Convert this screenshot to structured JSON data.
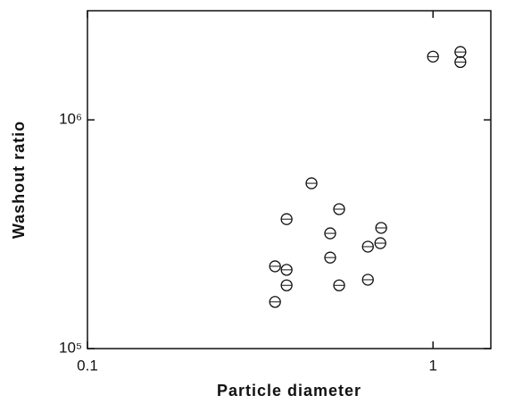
{
  "chart_data": {
    "type": "scatter",
    "x_label": "Particle diameter",
    "y_label": "Washout ratio",
    "xscale": "log",
    "yscale": "log",
    "xlim": [
      0.1,
      1.47
    ],
    "ylim": [
      100000,
      3000000
    ],
    "xticks": [
      0.1,
      1
    ],
    "yticks": [
      {
        "value": 100000,
        "label": "10⁵"
      },
      {
        "value": 1000000,
        "label": "10⁶"
      }
    ],
    "color": "#111111",
    "x": [
      1.0,
      1.2,
      1.2,
      0.445,
      0.535,
      0.377,
      0.708,
      0.504,
      0.648,
      0.704,
      0.504,
      0.349,
      0.377,
      0.377,
      0.535,
      0.648,
      0.349
    ],
    "values": [
      1890000,
      1980000,
      1790000,
      528000,
      407000,
      368000,
      337000,
      319000,
      279000,
      289000,
      250000,
      229000,
      221000,
      189000,
      189000,
      200000,
      160000
    ]
  }
}
